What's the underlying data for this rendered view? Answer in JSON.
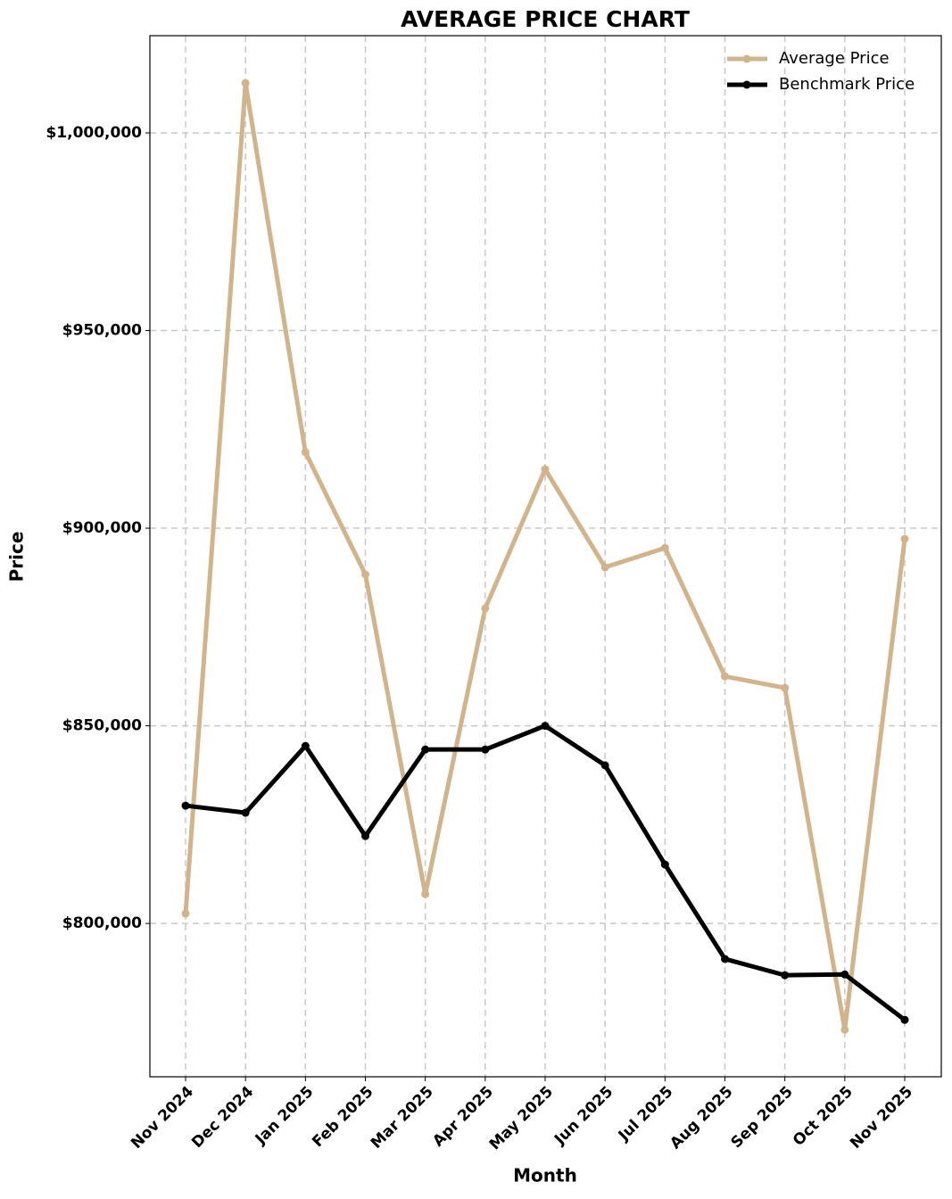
{
  "chart_data": {
    "type": "line",
    "title": "AVERAGE PRICE CHART",
    "x_label": "Month",
    "y_label": "Price",
    "categories": [
      "Nov 2024",
      "Dec 2024",
      "Jan 2025",
      "Feb 2025",
      "Mar 2025",
      "Apr 2025",
      "May 2025",
      "Jun 2025",
      "Jul 2025",
      "Aug 2025",
      "Sep 2025",
      "Oct 2025",
      "Nov 2025"
    ],
    "series": [
      {
        "name": "Average Price",
        "color": "#d2b48c",
        "values": [
          802500,
          1012600,
          919200,
          888300,
          807400,
          879700,
          914900,
          890100,
          895000,
          862500,
          859600,
          773100,
          897300
        ]
      },
      {
        "name": "Benchmark Price",
        "color": "#000000",
        "values": [
          829800,
          828000,
          844900,
          822100,
          844000,
          844000,
          850000,
          840000,
          814900,
          791000,
          786900,
          787100,
          775600
        ]
      }
    ],
    "ylim": [
      761200,
      1024600
    ],
    "yticks": [
      {
        "value": 800000,
        "label": "$800,000"
      },
      {
        "value": 850000,
        "label": "$850,000"
      },
      {
        "value": 900000,
        "label": "$900,000"
      },
      {
        "value": 950000,
        "label": "$950,000"
      },
      {
        "value": 1000000,
        "label": "$1,000,000"
      }
    ],
    "grid": true,
    "legend": "upper right"
  }
}
